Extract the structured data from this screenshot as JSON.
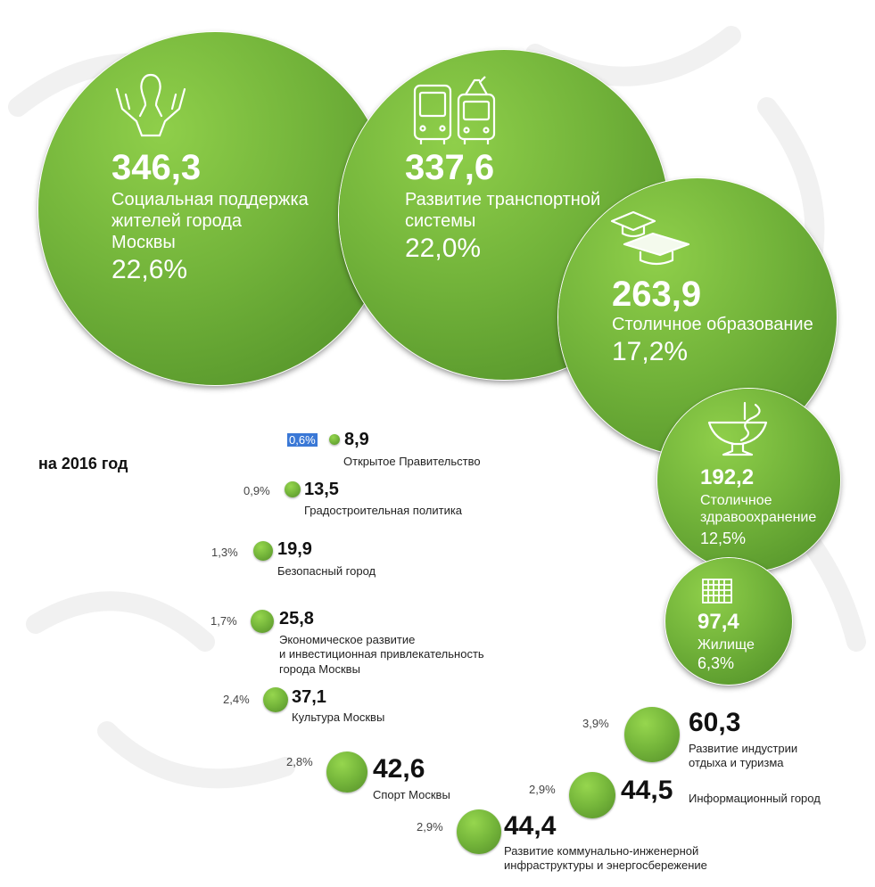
{
  "year_title": "на 2016 год",
  "colors": {
    "bubble": "#72b33a",
    "bubble_dark": "#4d8c26",
    "text": "#111111",
    "highlight": "#3a78d6"
  },
  "chart_data": {
    "type": "bubble",
    "title": "на 2016 год",
    "items": [
      {
        "value": "346,3",
        "label_lines": [
          "Социальная поддержка",
          "жителей города",
          "Москвы"
        ],
        "percent": "22,6%",
        "icon": "hands-person-icon"
      },
      {
        "value": "337,6",
        "label_lines": [
          "Развитие транспортной",
          "системы"
        ],
        "percent": "22,0%",
        "icon": "bus-tram-icon"
      },
      {
        "value": "263,9",
        "label_lines": [
          "Столичное образование"
        ],
        "percent": "17,2%",
        "icon": "graduation-cap-icon"
      },
      {
        "value": "192,2",
        "label_lines": [
          "Столичное",
          "здравоохранение"
        ],
        "percent": "12,5%",
        "icon": "medical-bowl-icon"
      },
      {
        "value": "97,4",
        "label_lines": [
          "Жилище"
        ],
        "percent": "6,3%",
        "icon": "building-icon"
      },
      {
        "value": "8,9",
        "label_lines": [
          "Открытое Правительство"
        ],
        "percent": "0,6%"
      },
      {
        "value": "13,5",
        "label_lines": [
          "Градостроительная политика"
        ],
        "percent": "0,9%"
      },
      {
        "value": "19,9",
        "label_lines": [
          "Безопасный город"
        ],
        "percent": "1,3%"
      },
      {
        "value": "25,8",
        "label_lines": [
          "Экономическое развитие",
          "и инвестиционная привлекательность",
          "города Москвы"
        ],
        "percent": "1,7%"
      },
      {
        "value": "37,1",
        "label_lines": [
          "Культура Москвы"
        ],
        "percent": "2,4%"
      },
      {
        "value": "42,6",
        "label_lines": [
          "Спорт Москвы"
        ],
        "percent": "2,8%"
      },
      {
        "value": "44,4",
        "label_lines": [
          "Развитие коммунально-инженерной",
          "инфраструктуры и энергосбережение"
        ],
        "percent": "2,9%"
      },
      {
        "value": "44,5",
        "label_lines": [
          "Информационный город"
        ],
        "percent": "2,9%"
      },
      {
        "value": "60,3",
        "label_lines": [
          "Развитие индустрии",
          "отдыха и туризма"
        ],
        "percent": "3,9%"
      }
    ]
  }
}
